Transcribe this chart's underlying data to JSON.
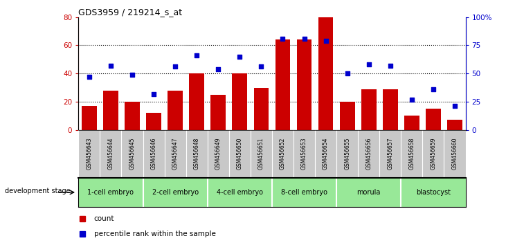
{
  "title": "GDS3959 / 219214_s_at",
  "samples": [
    "GSM456643",
    "GSM456644",
    "GSM456645",
    "GSM456646",
    "GSM456647",
    "GSM456648",
    "GSM456649",
    "GSM456650",
    "GSM456651",
    "GSM456652",
    "GSM456653",
    "GSM456654",
    "GSM456655",
    "GSM456656",
    "GSM456657",
    "GSM456658",
    "GSM456659",
    "GSM456660"
  ],
  "counts": [
    17,
    28,
    20,
    12,
    28,
    40,
    25,
    40,
    30,
    64,
    64,
    80,
    20,
    29,
    29,
    10,
    15,
    7
  ],
  "percentiles": [
    47,
    57,
    49,
    32,
    56,
    66,
    54,
    65,
    56,
    81,
    81,
    79,
    50,
    58,
    57,
    27,
    36,
    21
  ],
  "stages": [
    {
      "label": "1-cell embryo",
      "start": 0,
      "end": 3
    },
    {
      "label": "2-cell embryo",
      "start": 3,
      "end": 6
    },
    {
      "label": "4-cell embryo",
      "start": 6,
      "end": 9
    },
    {
      "label": "8-cell embryo",
      "start": 9,
      "end": 12
    },
    {
      "label": "morula",
      "start": 12,
      "end": 15
    },
    {
      "label": "blastocyst",
      "start": 15,
      "end": 18
    }
  ],
  "bar_color": "#CC0000",
  "scatter_color": "#0000CC",
  "ylim_left": [
    0,
    80
  ],
  "ylim_right": [
    0,
    100
  ],
  "yticks_left": [
    0,
    20,
    40,
    60,
    80
  ],
  "yticks_right": [
    0,
    25,
    50,
    75,
    100
  ],
  "ytick_labels_right": [
    "0",
    "25",
    "50",
    "75",
    "100%"
  ],
  "background_color": "#ffffff",
  "plot_bg_color": "#ffffff",
  "development_stage_label": "development stage",
  "legend_count": "count",
  "legend_percentile": "percentile rank within the sample",
  "tick_label_bg": "#c8c8c8",
  "stage_bg_color": "#98e898",
  "stage_dark_color": "#5acd5a",
  "grid_color": "#000000",
  "grid_style": ":",
  "grid_linewidth": 0.8
}
